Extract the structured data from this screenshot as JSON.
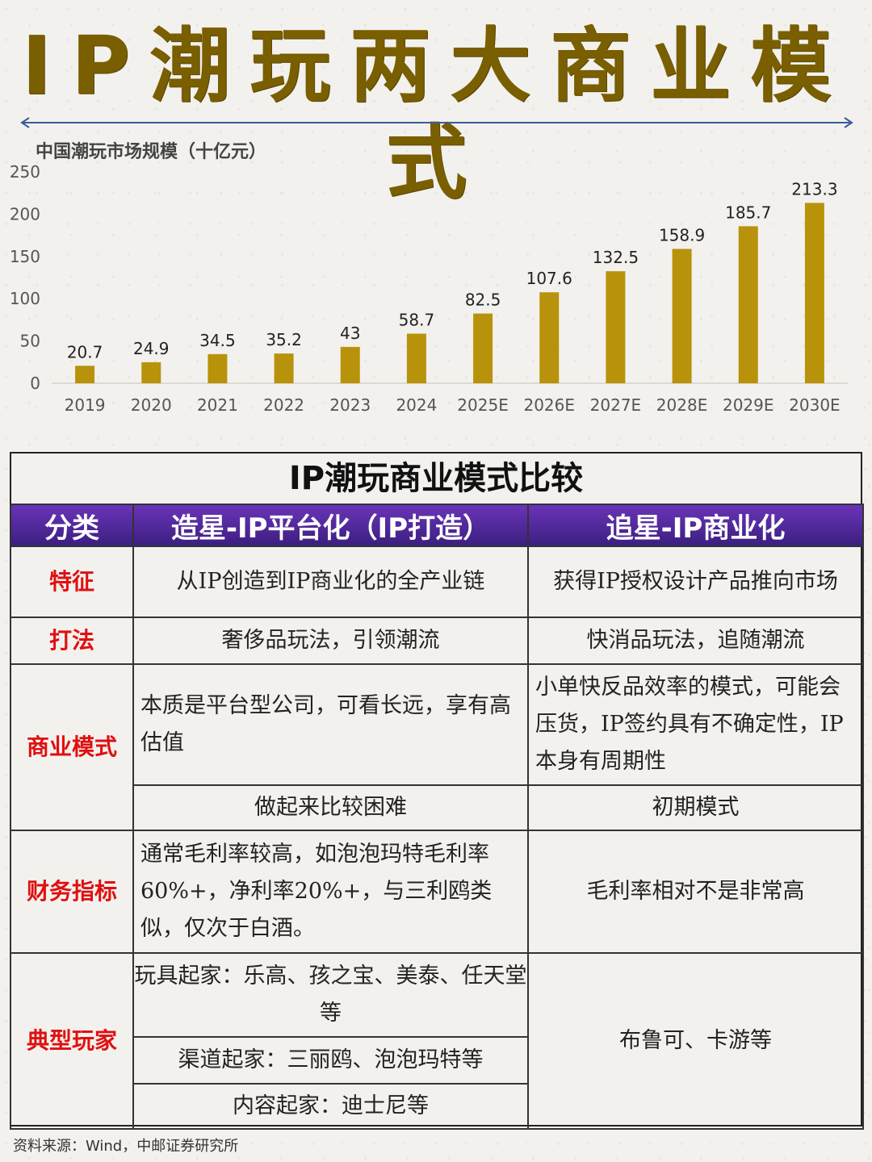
{
  "main_title": "IP潮玩两大商业模式",
  "chart_title": "中国潮玩市场规模（十亿元）",
  "colors": {
    "bar": "#b8920a",
    "title": "#7a5f00",
    "header_bg": "#4a2596",
    "row_label": "#e01010",
    "arrow": "#3a5a9a"
  },
  "chart_data": {
    "type": "bar",
    "title": "中国潮玩市场规模（十亿元）",
    "categories": [
      "2019",
      "2020",
      "2021",
      "2022",
      "2023",
      "2024",
      "2025E",
      "2026E",
      "2027E",
      "2028E",
      "2029E",
      "2030E"
    ],
    "values": [
      20.7,
      24.9,
      34.5,
      35.2,
      43,
      58.7,
      82.5,
      107.6,
      132.5,
      158.9,
      185.7,
      213.3
    ],
    "value_labels": [
      "20.7",
      "24.9",
      "34.5",
      "35.2",
      "43",
      "58.7",
      "82.5",
      "107.6",
      "132.5",
      "158.9",
      "185.7",
      "213.3"
    ],
    "yticks": [
      "0",
      "50",
      "100",
      "150",
      "200",
      "250"
    ],
    "ylim": [
      0,
      250
    ],
    "grid": false
  },
  "comparison": {
    "title": "IP潮玩商业模式比较",
    "headers": [
      "分类",
      "造星-IP平台化（IP打造）",
      "追星-IP商业化"
    ],
    "rows": {
      "feature": {
        "label": "特征",
        "a": "从IP创造到IP商业化的全产业链",
        "b": "获得IP授权设计产品推向市场"
      },
      "play": {
        "label": "打法",
        "a": "奢侈品玩法，引领潮流",
        "b": "快消品玩法，追随潮流"
      },
      "model": {
        "label": "商业模式",
        "a1": "本质是平台型公司，可看长远，享有高估值",
        "b1": "小单快反品效率的模式，可能会压货，IP签约具有不确定性，IP本身有周期性",
        "a2": "做起来比较困难",
        "b2": "初期模式"
      },
      "finance": {
        "label": "财务指标",
        "a": "通常毛利率较高，如泡泡玛特毛利率60%+，净利率20%+，与三利鸥类似，仅次于白酒。",
        "b": "毛利率相对不是非常高"
      },
      "players": {
        "label": "典型玩家",
        "a1": "玩具起家：乐高、孩之宝、美泰、任天堂等",
        "a2": "渠道起家：三丽鸥、泡泡玛特等",
        "a3": "内容起家：迪士尼等",
        "b": "布鲁可、卡游等"
      }
    }
  },
  "source": "资料来源：Wind，中邮证券研究所"
}
